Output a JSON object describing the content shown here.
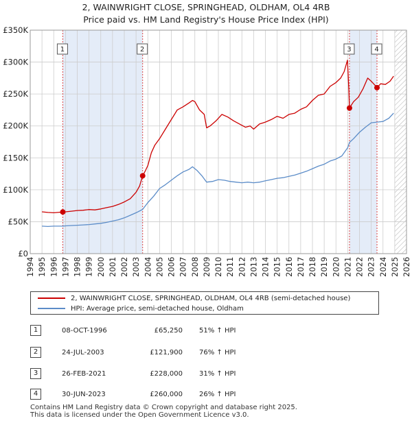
{
  "title_line1": "2, WAINWRIGHT CLOSE, SPRINGHEAD, OLDHAM, OL4 4RB",
  "title_line2": "Price paid vs. HM Land Registry's House Price Index (HPI)",
  "colors": {
    "price": "#cc0000",
    "hpi": "#5b8cc8",
    "shade": "#e4ecf8",
    "vline": "#dd4444"
  },
  "chart_data": {
    "type": "line",
    "title": "Price paid vs. HM Land Registry's House Price Index (HPI)",
    "xlim": [
      1994,
      2026
    ],
    "ylim": [
      0,
      350000
    ],
    "x_ticks": [
      "1994",
      "1995",
      "1996",
      "1997",
      "1998",
      "1999",
      "2000",
      "2001",
      "2002",
      "2003",
      "2004",
      "2005",
      "2006",
      "2007",
      "2008",
      "2009",
      "2010",
      "2011",
      "2012",
      "2013",
      "2014",
      "2015",
      "2016",
      "2017",
      "2018",
      "2019",
      "2020",
      "2021",
      "2022",
      "2023",
      "2024",
      "2025",
      "2026"
    ],
    "y_ticks": [
      {
        "value": 0,
        "label": "£0"
      },
      {
        "value": 50000,
        "label": "£50K"
      },
      {
        "value": 100000,
        "label": "£100K"
      },
      {
        "value": 150000,
        "label": "£150K"
      },
      {
        "value": 200000,
        "label": "£200K"
      },
      {
        "value": 250000,
        "label": "£250K"
      },
      {
        "value": 300000,
        "label": "£300K"
      },
      {
        "value": 350000,
        "label": "£350K"
      }
    ],
    "grid": true,
    "hatched_region": [
      2025.0,
      2026.0
    ],
    "series": [
      {
        "name": "2, WAINWRIGHT CLOSE, SPRINGHEAD, OLDHAM, OL4 4RB (semi-detached house)",
        "color": "#cc0000",
        "points": [
          [
            1995.0,
            65500
          ],
          [
            1995.5,
            64500
          ],
          [
            1996.0,
            64000
          ],
          [
            1996.5,
            64800
          ],
          [
            1996.77,
            65250
          ],
          [
            1997.0,
            65500
          ],
          [
            1997.5,
            66500
          ],
          [
            1998.0,
            67500
          ],
          [
            1998.5,
            68000
          ],
          [
            1999.0,
            69000
          ],
          [
            1999.5,
            68500
          ],
          [
            2000.0,
            70000
          ],
          [
            2000.5,
            72000
          ],
          [
            2001.0,
            74000
          ],
          [
            2001.5,
            77000
          ],
          [
            2002.0,
            81000
          ],
          [
            2002.5,
            86000
          ],
          [
            2003.0,
            96000
          ],
          [
            2003.3,
            106000
          ],
          [
            2003.56,
            121900
          ],
          [
            2003.8,
            130000
          ],
          [
            2004.0,
            138000
          ],
          [
            2004.3,
            158000
          ],
          [
            2004.6,
            170000
          ],
          [
            2005.0,
            180000
          ],
          [
            2005.5,
            195000
          ],
          [
            2006.0,
            210000
          ],
          [
            2006.5,
            225000
          ],
          [
            2007.0,
            230000
          ],
          [
            2007.5,
            236000
          ],
          [
            2007.8,
            240000
          ],
          [
            2008.0,
            238000
          ],
          [
            2008.4,
            225000
          ],
          [
            2008.8,
            218000
          ],
          [
            2009.0,
            197000
          ],
          [
            2009.3,
            200000
          ],
          [
            2009.8,
            208000
          ],
          [
            2010.3,
            218000
          ],
          [
            2010.8,
            214000
          ],
          [
            2011.3,
            208000
          ],
          [
            2011.8,
            203000
          ],
          [
            2012.3,
            198000
          ],
          [
            2012.7,
            200000
          ],
          [
            2013.0,
            195000
          ],
          [
            2013.5,
            203000
          ],
          [
            2014.0,
            206000
          ],
          [
            2014.5,
            210000
          ],
          [
            2015.0,
            215000
          ],
          [
            2015.5,
            212000
          ],
          [
            2016.0,
            218000
          ],
          [
            2016.5,
            220000
          ],
          [
            2017.0,
            226000
          ],
          [
            2017.5,
            230000
          ],
          [
            2018.0,
            240000
          ],
          [
            2018.5,
            248000
          ],
          [
            2019.0,
            250000
          ],
          [
            2019.5,
            262000
          ],
          [
            2020.0,
            268000
          ],
          [
            2020.4,
            275000
          ],
          [
            2020.7,
            285000
          ],
          [
            2020.98,
            303000
          ],
          [
            2021.1,
            255000
          ],
          [
            2021.15,
            228000
          ],
          [
            2021.5,
            238000
          ],
          [
            2021.9,
            245000
          ],
          [
            2022.3,
            258000
          ],
          [
            2022.7,
            275000
          ],
          [
            2023.0,
            270000
          ],
          [
            2023.2,
            266000
          ],
          [
            2023.5,
            260000
          ],
          [
            2023.8,
            266000
          ],
          [
            2024.2,
            265000
          ],
          [
            2024.6,
            270000
          ],
          [
            2024.9,
            278000
          ]
        ]
      },
      {
        "name": "HPI: Average price, semi-detached house, Oldham",
        "color": "#5b8cc8",
        "points": [
          [
            1995.0,
            43000
          ],
          [
            1995.5,
            42500
          ],
          [
            1996.0,
            43000
          ],
          [
            1996.77,
            43200
          ],
          [
            1997.0,
            43500
          ],
          [
            1997.5,
            44000
          ],
          [
            1998.0,
            44500
          ],
          [
            1998.5,
            45000
          ],
          [
            1999.0,
            45500
          ],
          [
            1999.5,
            46500
          ],
          [
            2000.0,
            47500
          ],
          [
            2000.5,
            49000
          ],
          [
            2001.0,
            51000
          ],
          [
            2001.5,
            53000
          ],
          [
            2002.0,
            56000
          ],
          [
            2002.5,
            60000
          ],
          [
            2003.0,
            64000
          ],
          [
            2003.56,
            69300
          ],
          [
            2004.0,
            80000
          ],
          [
            2004.5,
            90000
          ],
          [
            2005.0,
            102000
          ],
          [
            2005.5,
            108000
          ],
          [
            2006.0,
            115000
          ],
          [
            2006.5,
            122000
          ],
          [
            2007.0,
            128000
          ],
          [
            2007.5,
            132000
          ],
          [
            2007.8,
            136000
          ],
          [
            2008.2,
            130000
          ],
          [
            2008.6,
            122000
          ],
          [
            2009.0,
            112000
          ],
          [
            2009.5,
            113000
          ],
          [
            2010.0,
            116000
          ],
          [
            2010.5,
            115000
          ],
          [
            2011.0,
            113000
          ],
          [
            2011.5,
            112000
          ],
          [
            2012.0,
            111000
          ],
          [
            2012.5,
            112000
          ],
          [
            2013.0,
            111000
          ],
          [
            2013.5,
            112000
          ],
          [
            2014.0,
            114000
          ],
          [
            2014.5,
            116000
          ],
          [
            2015.0,
            118000
          ],
          [
            2015.5,
            119000
          ],
          [
            2016.0,
            121000
          ],
          [
            2016.5,
            123000
          ],
          [
            2017.0,
            126000
          ],
          [
            2017.5,
            129000
          ],
          [
            2018.0,
            133000
          ],
          [
            2018.5,
            137000
          ],
          [
            2019.0,
            140000
          ],
          [
            2019.5,
            145000
          ],
          [
            2020.0,
            148000
          ],
          [
            2020.5,
            153000
          ],
          [
            2021.0,
            166000
          ],
          [
            2021.15,
            174000
          ],
          [
            2021.5,
            180000
          ],
          [
            2022.0,
            190000
          ],
          [
            2022.5,
            198000
          ],
          [
            2023.0,
            205000
          ],
          [
            2023.5,
            206000
          ],
          [
            2024.0,
            207000
          ],
          [
            2024.5,
            212000
          ],
          [
            2024.9,
            220000
          ]
        ]
      }
    ],
    "markers": [
      {
        "label": "1",
        "x": 1996.77,
        "y": 65250
      },
      {
        "label": "2",
        "x": 2003.56,
        "y": 121900
      },
      {
        "label": "3",
        "x": 2021.15,
        "y": 228000
      },
      {
        "label": "4",
        "x": 2023.49,
        "y": 260000
      }
    ]
  },
  "legend": {
    "price_label": "2, WAINWRIGHT CLOSE, SPRINGHEAD, OLDHAM, OL4 4RB (semi-detached house)",
    "hpi_label": "HPI: Average price, semi-detached house, Oldham"
  },
  "transactions": [
    {
      "num": "1",
      "date": "08-OCT-1996",
      "price": "£65,250",
      "hpi": "51% ↑ HPI"
    },
    {
      "num": "2",
      "date": "24-JUL-2003",
      "price": "£121,900",
      "hpi": "76% ↑ HPI"
    },
    {
      "num": "3",
      "date": "26-FEB-2021",
      "price": "£228,000",
      "hpi": "31% ↑ HPI"
    },
    {
      "num": "4",
      "date": "30-JUN-2023",
      "price": "£260,000",
      "hpi": "26% ↑ HPI"
    }
  ],
  "footer_line1": "Contains HM Land Registry data © Crown copyright and database right 2025.",
  "footer_line2": "This data is licensed under the Open Government Licence v3.0."
}
